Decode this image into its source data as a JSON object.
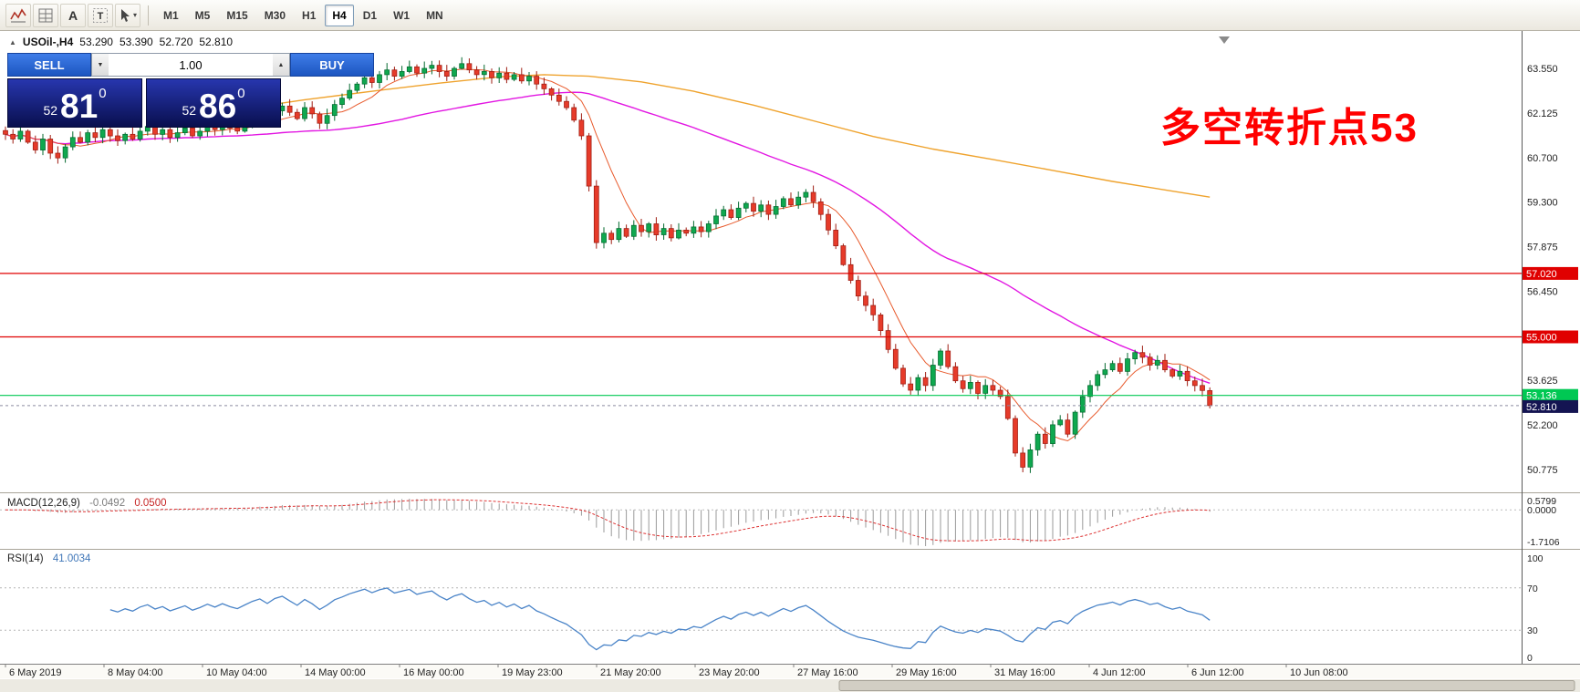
{
  "toolbar": {
    "icons": [
      {
        "name": "price-chart-icon",
        "kind": "zigzag"
      },
      {
        "name": "grid-icon",
        "kind": "grid"
      },
      {
        "name": "text-tool-icon",
        "kind": "letterA"
      },
      {
        "name": "label-tool-icon",
        "kind": "letterT"
      },
      {
        "name": "drawing-tools-icon",
        "kind": "cursor",
        "caret": "▾"
      }
    ],
    "timeframes": [
      {
        "label": "M1",
        "active": false
      },
      {
        "label": "M5",
        "active": false
      },
      {
        "label": "M15",
        "active": false
      },
      {
        "label": "M30",
        "active": false
      },
      {
        "label": "H1",
        "active": false
      },
      {
        "label": "H4",
        "active": true
      },
      {
        "label": "D1",
        "active": false
      },
      {
        "label": "W1",
        "active": false
      },
      {
        "label": "MN",
        "active": false
      }
    ]
  },
  "trade_panel": {
    "sell_label": "SELL",
    "buy_label": "BUY",
    "volume": "1.00",
    "vol_down_glyph": "▼",
    "vol_up_glyph": "▲",
    "sell": {
      "prefix": "52",
      "big": "81",
      "sup": "0"
    },
    "buy": {
      "prefix": "52",
      "big": "86",
      "sup": "0"
    }
  },
  "chart": {
    "header": {
      "collapse_glyph": "▲",
      "symbol": "USOil-,H4",
      "open": "53.290",
      "high": "53.390",
      "low": "52.720",
      "close": "52.810"
    },
    "annotation": {
      "text": "多空转折点53",
      "color": "#ff0000"
    },
    "price_axis_labels": [
      "63.550",
      "62.125",
      "60.700",
      "59.300",
      "57.875",
      "56.450",
      "53.625",
      "52.200",
      "50.775"
    ],
    "hlines": [
      {
        "value": 57.02,
        "label": "57.020",
        "color": "#e00000"
      },
      {
        "value": 55.0,
        "label": "55.000",
        "color": "#e00000"
      },
      {
        "value": 53.136,
        "label": "53.136",
        "color": "#00c853"
      }
    ],
    "current_price": {
      "value": 52.81,
      "label": "52.810",
      "bg": "#141452"
    },
    "colors": {
      "up": "#0fa84f",
      "up_stroke": "#046a2f",
      "down": "#e63b2a",
      "down_stroke": "#9e1d12",
      "ma_fast": "#e85a2c",
      "ma_mid": "#e216e2",
      "ma_slow": "#efa32e",
      "macd_hist": "#9a9a9a",
      "macd_signal": "#dd3333",
      "rsi_line": "#4a84c8"
    },
    "chart_data": {
      "type": "candlestick",
      "ma_fast_period": 8,
      "ma_mid_period": 48,
      "ma_slow_points": [
        [
          30,
          62.2
        ],
        [
          40,
          62.55
        ],
        [
          50,
          62.85
        ],
        [
          58,
          63.08
        ],
        [
          66,
          63.28
        ],
        [
          72,
          63.35
        ],
        [
          78,
          63.3
        ],
        [
          85,
          63.12
        ],
        [
          92,
          62.82
        ],
        [
          100,
          62.38
        ],
        [
          108,
          61.88
        ],
        [
          116,
          61.38
        ],
        [
          124,
          60.98
        ],
        [
          132,
          60.65
        ],
        [
          140,
          60.3
        ],
        [
          148,
          59.95
        ],
        [
          155,
          59.68
        ],
        [
          161,
          59.45
        ]
      ],
      "closes": [
        61.45,
        61.3,
        61.55,
        61.2,
        60.95,
        61.3,
        60.85,
        60.7,
        61.05,
        61.35,
        61.2,
        61.5,
        61.35,
        61.6,
        61.4,
        61.25,
        61.45,
        61.3,
        61.55,
        61.7,
        61.45,
        61.6,
        61.35,
        61.5,
        61.65,
        61.4,
        61.55,
        61.75,
        61.6,
        61.8,
        61.65,
        61.55,
        61.75,
        61.95,
        62.1,
        61.9,
        62.2,
        62.35,
        62.15,
        61.95,
        62.3,
        62.1,
        61.8,
        62.05,
        62.4,
        62.6,
        62.85,
        63.05,
        63.25,
        63.1,
        63.35,
        63.5,
        63.3,
        63.45,
        63.6,
        63.4,
        63.55,
        63.65,
        63.45,
        63.3,
        63.55,
        63.7,
        63.5,
        63.35,
        63.45,
        63.25,
        63.4,
        63.2,
        63.35,
        63.15,
        63.3,
        63.05,
        62.9,
        62.7,
        62.5,
        62.3,
        61.9,
        61.4,
        59.8,
        58.0,
        58.3,
        58.1,
        58.45,
        58.2,
        58.55,
        58.35,
        58.6,
        58.25,
        58.45,
        58.15,
        58.4,
        58.3,
        58.5,
        58.35,
        58.6,
        58.85,
        59.05,
        58.8,
        59.1,
        59.25,
        59.0,
        59.2,
        58.9,
        59.15,
        59.4,
        59.2,
        59.45,
        59.6,
        59.3,
        58.9,
        58.4,
        57.9,
        57.3,
        56.8,
        56.3,
        56.0,
        55.7,
        55.2,
        54.6,
        54.0,
        53.5,
        53.3,
        53.7,
        53.45,
        54.1,
        54.55,
        54.05,
        53.6,
        53.35,
        53.55,
        53.2,
        53.45,
        53.3,
        53.1,
        52.4,
        51.3,
        50.85,
        51.4,
        51.9,
        51.6,
        52.2,
        52.35,
        51.9,
        52.6,
        53.1,
        53.45,
        53.8,
        53.95,
        54.15,
        53.9,
        54.3,
        54.5,
        54.35,
        54.1,
        54.25,
        53.95,
        53.75,
        53.9,
        53.6,
        53.45,
        53.29,
        52.81
      ]
    }
  },
  "macd": {
    "title": "MACD(12,26,9)",
    "value": "-0.0492",
    "signal_value": "0.0500",
    "axis_labels": [
      "0.5799",
      "0.0000",
      "-1.7106"
    ]
  },
  "rsi": {
    "title": "RSI(14)",
    "value": "41.0034",
    "levels": [
      70,
      30
    ],
    "axis_labels": [
      "100",
      "70",
      "30",
      "0"
    ]
  },
  "time_axis": [
    "6 May 2019",
    "8 May 04:00",
    "10 May 04:00",
    "14 May 00:00",
    "16 May 00:00",
    "19 May 23:00",
    "21 May 20:00",
    "23 May 20:00",
    "27 May 16:00",
    "29 May 16:00",
    "31 May 16:00",
    "4 Jun 12:00",
    "6 Jun 12:00",
    "10 Jun 08:00"
  ]
}
